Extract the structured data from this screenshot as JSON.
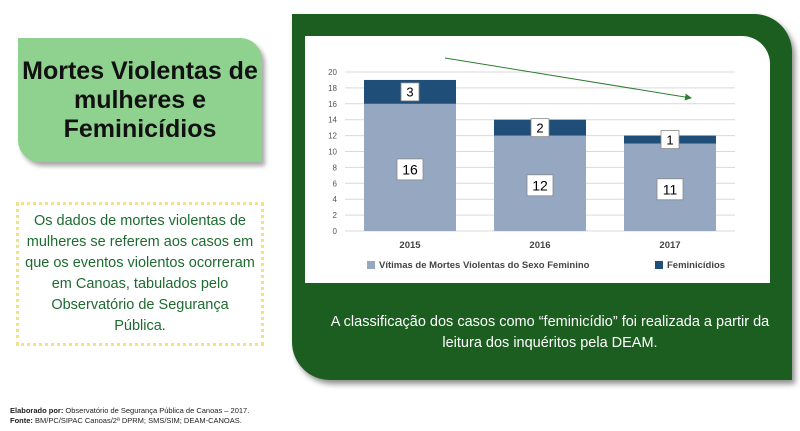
{
  "heading": "Mortes Violentas de mulheres e Feminicídios",
  "description": "Os dados de mortes violentas de mulheres se referem aos casos em que os eventos violentos ocorreram em Canoas, tabulados pelo Observatório de Segurança Pública.",
  "note": "A classificação dos casos como “feminicídio” foi realizada a partir da leitura dos inquéritos pela DEAM.",
  "footer": {
    "line1_label": "Elaborado por:",
    "line1_value": " Observatório de Segurança Pública de Canoas – 2017.",
    "line2_label": "Fonte:",
    "line2_value": " BM/PC/SIPAC Canoas/2ª DPRM; SMS/SIM; DEAM-CANOAS."
  },
  "colors": {
    "victims": "#96a7c2",
    "femicides": "#1f4e79",
    "trend_arrow": "#2e7d32"
  },
  "chart_data": {
    "type": "bar",
    "stacked": true,
    "categories": [
      "2015",
      "2016",
      "2017"
    ],
    "series": [
      {
        "name": "Vítimas de Mortes Violentas do Sexo Feminino",
        "values": [
          16,
          12,
          11
        ]
      },
      {
        "name": "Feminicídios",
        "values": [
          3,
          2,
          1
        ]
      }
    ],
    "ylim": [
      0,
      20
    ],
    "yticks": [
      0,
      2,
      4,
      6,
      8,
      10,
      12,
      14,
      16,
      18,
      20
    ],
    "grid": true,
    "legend": "bottom",
    "annotation": "downward trend arrow",
    "data_labels": true
  }
}
